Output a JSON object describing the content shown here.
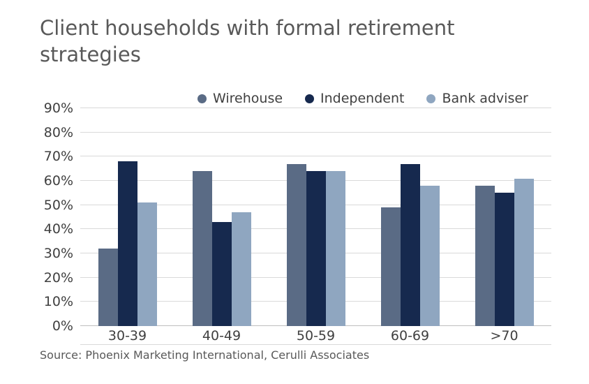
{
  "header": {
    "title": "Client households with formal retirement strategies"
  },
  "source_note": "Source: Phoenix Marketing International, Cerulli Associates",
  "colors": {
    "title_text": "#595959",
    "axis_text": "#404040",
    "gridline": "#d9d9d9",
    "baseline": "#bfbfbf",
    "background": "#ffffff",
    "wirehouse": "#5a6b85",
    "independent": "#16294e",
    "bank_adviser": "#8fa6c0"
  },
  "chart_data": {
    "type": "bar",
    "title": "Client households with formal retirement strategies",
    "categories": [
      "30-39",
      "40-49",
      "50-59",
      "60-69",
      ">70"
    ],
    "series": [
      {
        "name": "Wirehouse",
        "color": "#5a6b85",
        "values": [
          32,
          64,
          67,
          49,
          58
        ]
      },
      {
        "name": "Independent",
        "color": "#16294e",
        "values": [
          68,
          43,
          64,
          67,
          55
        ]
      },
      {
        "name": "Bank adviser",
        "color": "#8fa6c0",
        "values": [
          51,
          47,
          64,
          58,
          61
        ]
      }
    ],
    "ylim": [
      0,
      90
    ],
    "yticks": [
      {
        "label": "0%",
        "value": 0
      },
      {
        "label": "10%",
        "value": 10
      },
      {
        "label": "20%",
        "value": 20
      },
      {
        "label": "30%",
        "value": 30
      },
      {
        "label": "40%",
        "value": 40
      },
      {
        "label": "50%",
        "value": 50
      },
      {
        "label": "60%",
        "value": 60
      },
      {
        "label": "70%",
        "value": 70
      },
      {
        "label": "80%",
        "value": 80
      },
      {
        "label": "90%",
        "value": 90
      }
    ],
    "grid": true,
    "legend_position": "top",
    "xlabel": "",
    "ylabel": ""
  }
}
